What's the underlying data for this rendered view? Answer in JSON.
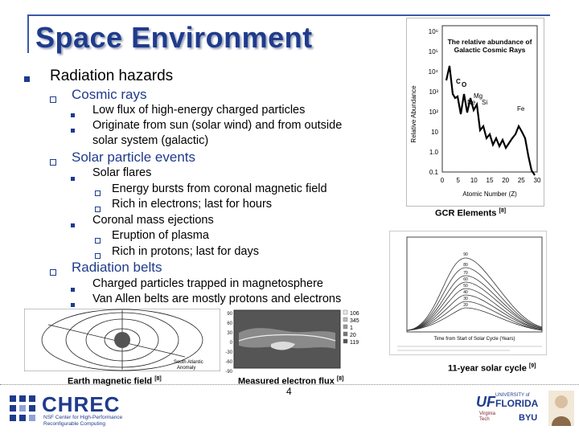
{
  "slide": {
    "title": "Space Environment",
    "page_number": "4"
  },
  "outline": {
    "heading": "Radiation hazards",
    "cosmic": {
      "label": "Cosmic rays",
      "items": [
        "Low flux of high-energy charged particles",
        "Originate from sun (solar wind) and from outside",
        "solar system (galactic)"
      ]
    },
    "solar": {
      "label": "Solar particle events",
      "flares": "Solar flares",
      "flare_items": [
        "Energy bursts from coronal magnetic field",
        "Rich in electrons; last for hours"
      ],
      "cme": "Coronal mass ejections",
      "cme_items": [
        "Eruption of plasma",
        "Rich in protons; last for days"
      ]
    },
    "belts": {
      "label": "Radiation belts",
      "items": [
        "Charged particles trapped in magnetosphere",
        "Van Allen belts are mostly protons and electrons"
      ]
    }
  },
  "figures": {
    "gcr": {
      "caption": "GCR Elements",
      "ref": "[8]",
      "title_line1": "The relative abundance of",
      "title_line2": "Galactic Cosmic Rays",
      "ylabel": "Relative Abundance",
      "xlabel": "Atomic Number (Z)",
      "yticks": [
        "10⁶",
        "10⁵",
        "10⁴",
        "10³",
        "10²",
        "10",
        "1.0",
        "0.1"
      ],
      "xticks": [
        "0",
        "5",
        "10",
        "15",
        "20",
        "25",
        "30"
      ],
      "element_labels": {
        "c": "C",
        "o": "O",
        "mg": "Mg",
        "ne": "Ne",
        "si": "Si",
        "fe": "Fe"
      }
    },
    "solar_cycle": {
      "caption": "11-year solar cycle",
      "ref": "[9]",
      "xlabel": "Time from Start of Solar Cycle (Years)",
      "curve_labels": [
        "90",
        "80",
        "70",
        "60",
        "50",
        "40",
        "30",
        "20"
      ]
    },
    "magnetic": {
      "caption": "Earth magnetic field",
      "ref": "[8]",
      "labels": {
        "south_atlantic_1": "South Atlantic",
        "south_atlantic_2": "Anomaly"
      }
    },
    "electron": {
      "caption": "Measured electron flux",
      "ref": "[8]",
      "legend": [
        "106",
        "345",
        "1",
        "20",
        "119"
      ],
      "lat_ticks": [
        "90",
        "60",
        "30",
        "0",
        "-30",
        "-60",
        "-90"
      ]
    }
  },
  "footer": {
    "logo_text": "CHREC",
    "logo_sub1": "NSF Center for High-Performance",
    "logo_sub2": "Reconfigurable Computing",
    "uf": "UF",
    "uf_line1": "UNIVERSITY of",
    "uf_line2": "FLORIDA",
    "vt": "Virginia Tech",
    "byu": "BYU"
  },
  "colors": {
    "title": "#1f3b8c",
    "accent": "#3a5aa8"
  }
}
